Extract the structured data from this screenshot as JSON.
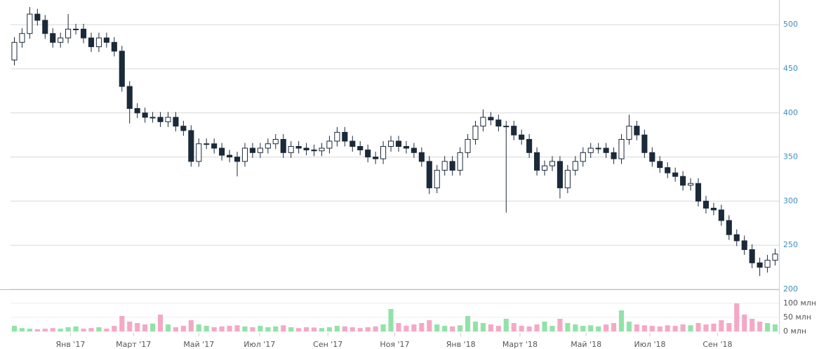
{
  "chart_data": {
    "type": "candlestick",
    "open": [
      460,
      480,
      490,
      512,
      505,
      490,
      480,
      485,
      495,
      495,
      485,
      475,
      485,
      480,
      470,
      430,
      405,
      400,
      395,
      395,
      390,
      395,
      385,
      380,
      345,
      365,
      365,
      360,
      352,
      350,
      345,
      360,
      355,
      360,
      365,
      370,
      355,
      362,
      360,
      358,
      357,
      360,
      368,
      378,
      368,
      362,
      358,
      350,
      348,
      362,
      368,
      362,
      360,
      355,
      345,
      315,
      335,
      345,
      335,
      355,
      370,
      385,
      395,
      392,
      385,
      385,
      375,
      370,
      355,
      335,
      340,
      345,
      315,
      335,
      345,
      355,
      360,
      360,
      355,
      348,
      370,
      385,
      375,
      355,
      345,
      338,
      332,
      328,
      318,
      320,
      300,
      292,
      290,
      278,
      262,
      255,
      245,
      230,
      225,
      233
    ],
    "high": [
      486,
      496,
      520,
      518,
      511,
      496,
      491,
      512,
      501,
      501,
      491,
      491,
      491,
      486,
      476,
      436,
      411,
      406,
      401,
      401,
      401,
      401,
      391,
      386,
      371,
      371,
      371,
      366,
      358,
      356,
      366,
      366,
      366,
      371,
      376,
      376,
      368,
      368,
      366,
      364,
      366,
      374,
      384,
      384,
      374,
      368,
      364,
      356,
      368,
      374,
      374,
      368,
      366,
      361,
      351,
      341,
      351,
      351,
      361,
      376,
      391,
      404,
      401,
      398,
      391,
      391,
      381,
      376,
      361,
      346,
      351,
      351,
      341,
      351,
      361,
      366,
      366,
      366,
      361,
      376,
      398,
      391,
      381,
      361,
      351,
      344,
      338,
      334,
      326,
      326,
      306,
      298,
      296,
      284,
      268,
      261,
      251,
      236,
      239,
      246
    ],
    "low": [
      454,
      474,
      484,
      499,
      484,
      474,
      474,
      479,
      489,
      479,
      469,
      469,
      474,
      464,
      424,
      388,
      394,
      389,
      389,
      384,
      384,
      379,
      374,
      339,
      339,
      359,
      354,
      346,
      344,
      328,
      339,
      349,
      349,
      354,
      359,
      349,
      349,
      354,
      352,
      351,
      351,
      354,
      362,
      362,
      356,
      352,
      344,
      342,
      342,
      356,
      356,
      354,
      349,
      339,
      308,
      309,
      329,
      329,
      329,
      349,
      364,
      379,
      386,
      379,
      287,
      369,
      364,
      349,
      329,
      329,
      334,
      303,
      309,
      329,
      339,
      349,
      354,
      349,
      342,
      342,
      364,
      369,
      349,
      339,
      332,
      326,
      322,
      312,
      312,
      294,
      286,
      284,
      272,
      256,
      249,
      239,
      224,
      215,
      219,
      227
    ],
    "close": [
      480,
      490,
      512,
      505,
      490,
      480,
      485,
      495,
      495,
      485,
      475,
      485,
      480,
      470,
      430,
      405,
      400,
      395,
      395,
      390,
      395,
      385,
      380,
      345,
      365,
      365,
      360,
      352,
      350,
      345,
      360,
      355,
      360,
      365,
      370,
      355,
      362,
      360,
      358,
      357,
      360,
      368,
      378,
      368,
      362,
      358,
      350,
      348,
      362,
      368,
      362,
      360,
      355,
      345,
      315,
      335,
      345,
      335,
      355,
      370,
      385,
      395,
      392,
      385,
      385,
      375,
      370,
      355,
      335,
      340,
      345,
      315,
      335,
      345,
      355,
      360,
      360,
      355,
      348,
      370,
      385,
      375,
      355,
      345,
      338,
      332,
      328,
      318,
      320,
      300,
      292,
      290,
      278,
      262,
      255,
      245,
      230,
      225,
      233,
      240
    ],
    "volume": [
      20,
      12,
      10,
      8,
      10,
      12,
      10,
      15,
      18,
      10,
      12,
      15,
      10,
      20,
      55,
      35,
      30,
      25,
      28,
      60,
      25,
      15,
      20,
      40,
      25,
      20,
      15,
      18,
      20,
      22,
      18,
      15,
      20,
      15,
      18,
      22,
      15,
      12,
      15,
      14,
      12,
      15,
      20,
      18,
      15,
      12,
      15,
      18,
      25,
      80,
      30,
      20,
      25,
      30,
      40,
      25,
      20,
      18,
      22,
      55,
      35,
      30,
      25,
      20,
      45,
      30,
      20,
      18,
      25,
      35,
      20,
      45,
      30,
      25,
      20,
      22,
      18,
      25,
      30,
      75,
      35,
      25,
      22,
      20,
      18,
      22,
      20,
      25,
      22,
      30,
      25,
      28,
      40,
      30,
      100,
      60,
      45,
      35,
      30,
      25
    ],
    "candle_color": "#1b2a3a",
    "up_volume_color": "#92e2a8",
    "down_volume_color": "#f5a8c6",
    "xlim": [
      0,
      100
    ],
    "xticks": [
      {
        "value": 7.8,
        "label": "Янв '17"
      },
      {
        "value": 16.0,
        "label": "Март '17"
      },
      {
        "value": 24.5,
        "label": "Май '17"
      },
      {
        "value": 32.4,
        "label": "Июл '17"
      },
      {
        "value": 41.3,
        "label": "Сен '17"
      },
      {
        "value": 50.0,
        "label": "Ноя '17"
      },
      {
        "value": 58.6,
        "label": "Янв '18"
      },
      {
        "value": 66.3,
        "label": "Март '18"
      },
      {
        "value": 74.9,
        "label": "Май '18"
      },
      {
        "value": 83.2,
        "label": "Июл '18"
      },
      {
        "value": 92.0,
        "label": "Сен '18"
      }
    ],
    "ylim": [
      200,
      528
    ],
    "yticks": [
      200,
      250,
      300,
      350,
      400,
      450,
      500
    ],
    "volume_ylim": [
      0,
      100
    ],
    "volume_ticks": [
      {
        "value": 0,
        "label": "0 млн"
      },
      {
        "value": 50,
        "label": "50 млн"
      },
      {
        "value": 100,
        "label": "100 млн"
      }
    ],
    "grid": true
  }
}
